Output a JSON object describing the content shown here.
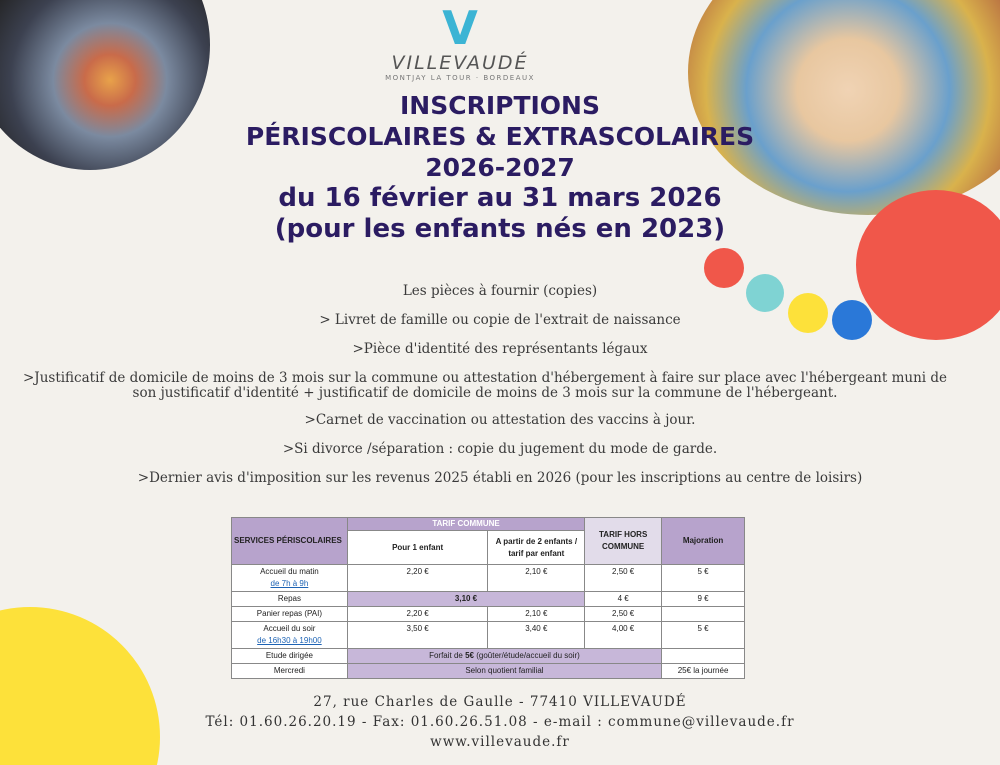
{
  "logo": {
    "mark": "V",
    "name": "VILLEVAUDÉ",
    "subtitle": "MONTJAY LA TOUR · BORDEAUX"
  },
  "title": {
    "line1": "INSCRIPTIONS",
    "line2": "PÉRISCOLAIRES & EXTRASCOLAIRES",
    "line3": "2026-2027",
    "line4": "du 16 février au 31 mars 2026",
    "line5": "(pour les enfants nés en 2023)"
  },
  "documents": [
    "Les pièces à fournir (copies)",
    "> Livret de famille ou copie de l'extrait de naissance",
    ">Pièce d'identité des représentants légaux",
    ">Justificatif de domicile de moins de 3 mois sur la commune ou attestation d'hébergement à faire sur place avec l'hébergeant muni de son justificatif d'identité + justificatif de domicile de moins de 3 mois sur la commune de l'hébergeant.",
    ">Carnet de vaccination ou attestation des vaccins à jour.",
    ">Si divorce /séparation : copie du jugement du mode de garde.",
    ">Dernier avis d'imposition sur les revenus 2025  établi en 2026 (pour les inscriptions au centre de loisirs)"
  ],
  "table": {
    "headers": {
      "services": "SERVICES PÉRISCOLAIRES",
      "tarif_commune": "TARIF COMMUNE",
      "un_enfant": "Pour 1 enfant",
      "deux_enfants": "A partir de 2 enfants / tarif par enfant",
      "hors_commune": "TARIF HORS COMMUNE",
      "majoration": "Majoration"
    },
    "rows": [
      {
        "service": "Accueil du matin",
        "hours": "de 7h à 9h",
        "un": "2,20 €",
        "deux": "2,10 €",
        "hors": "2,50 €",
        "maj": "5 €"
      },
      {
        "service": "Repas",
        "merged": "3,10 €",
        "hors": "4 €",
        "maj": "9 €"
      },
      {
        "service": "Panier repas (PAI)",
        "un": "2,20 €",
        "deux": "2,10 €",
        "hors": "2,50 €",
        "maj": ""
      },
      {
        "service": "Accueil du soir",
        "hours": "de 16h30 à 19h00",
        "un": "3,50 €",
        "deux": "3,40 €",
        "hors": "4,00 €",
        "maj": "5 €"
      },
      {
        "service": "Etude dirigée",
        "merged_pre": "Forfait de ",
        "merged_bold": "5€",
        "merged_post": " (goûter/étude/accueil du soir)",
        "maj": ""
      },
      {
        "service": "Mercredi",
        "merged": "Selon quotient familial",
        "maj": "25€ la journée"
      }
    ]
  },
  "footer": {
    "address": "27, rue Charles de Gaulle - 77410 VILLEVAUDÉ",
    "contact": "Tél: 01.60.26.20.19 - Fax: 01.60.26.51.08 - e-mail : commune@villevaude.fr",
    "website": "www.villevaude.fr"
  },
  "colors": {
    "title": "#2b1c62",
    "red": "#f0574a",
    "teal": "#7fd3d3",
    "yellow": "#fde13a",
    "blue": "#2a78d8"
  }
}
